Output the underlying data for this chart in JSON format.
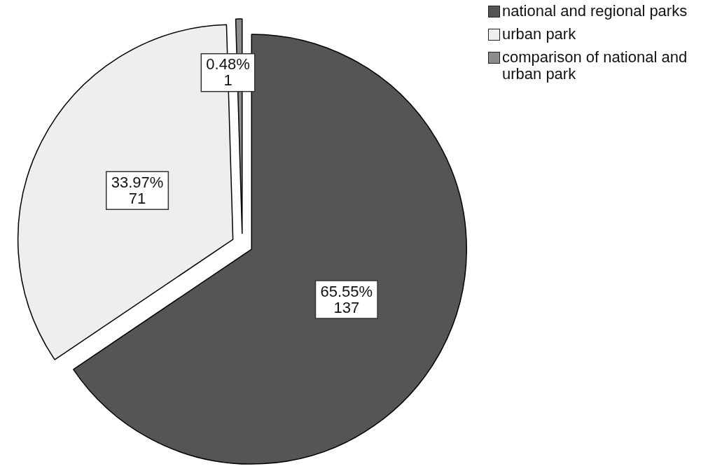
{
  "chart_data": {
    "type": "pie",
    "categories": [
      "national and regional parks",
      "urban park",
      "comparison of national and urban park"
    ],
    "values": [
      137,
      71,
      1
    ],
    "colors": [
      "#555555",
      "#eeeeee",
      "#8c8c8c"
    ],
    "value_labels": [
      "65.55%\n137",
      "33.97%\n71",
      "0.48%\n1"
    ],
    "legend": "top right"
  }
}
